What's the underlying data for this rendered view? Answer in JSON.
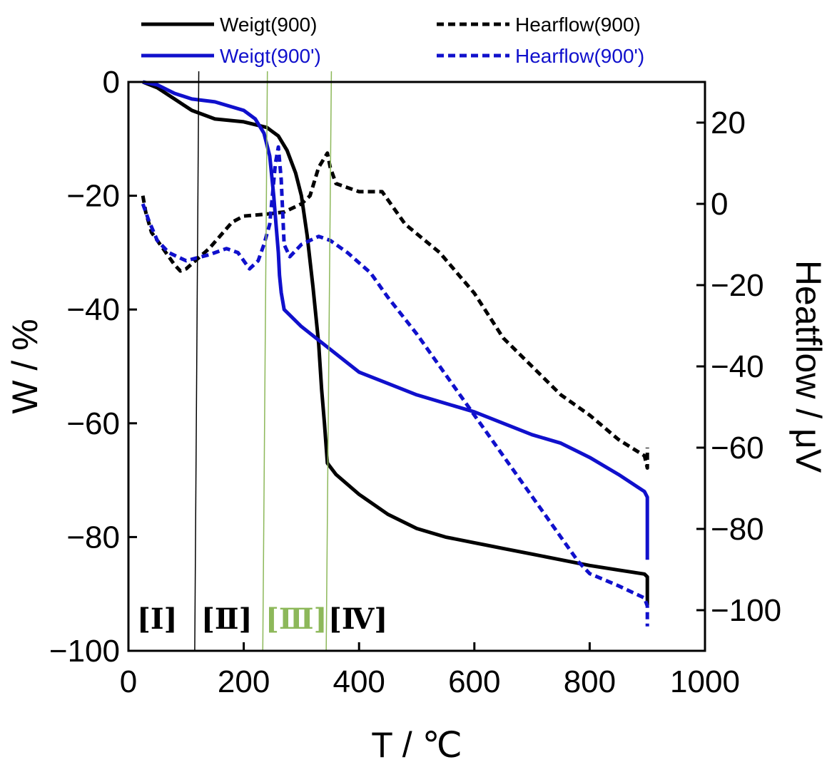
{
  "chart_data": {
    "type": "line",
    "xlabel": "T  /  ℃",
    "ylabel_left": "W  /  %",
    "ylabel_right": "Heatflow  /  μV",
    "xlim": [
      0,
      1000
    ],
    "ylim_left": [
      -100,
      0
    ],
    "ylim_right": [
      -110,
      30
    ],
    "x_ticks": [
      0,
      200,
      400,
      600,
      800,
      1000
    ],
    "y_left_ticks": [
      0,
      -20,
      -40,
      -60,
      -80,
      -100
    ],
    "y_right_ticks": [
      20,
      0,
      -20,
      -40,
      -60,
      -80,
      -100
    ],
    "grid": false,
    "legend_placement": "top",
    "legend": [
      {
        "label": "Weigt(900)",
        "color": "#000000",
        "dash": "solid"
      },
      {
        "label": "Hearflow(900)",
        "color": "#000000",
        "dash": "dashed"
      },
      {
        "label": "Weigt(900')",
        "color": "#1010cc",
        "dash": "solid"
      },
      {
        "label": "Hearflow(900')",
        "color": "#1010cc",
        "dash": "dashed"
      }
    ],
    "regions": [
      {
        "label": "[Ⅰ]",
        "color": "#000000"
      },
      {
        "label": "[Ⅱ]",
        "color": "#000000"
      },
      {
        "label": "[Ⅲ]",
        "color": "#8db85a"
      },
      {
        "label": "[Ⅳ]",
        "color": "#000000"
      }
    ],
    "boundary_lines": [
      {
        "x": [
          115,
          122
        ],
        "color": "#000000"
      },
      {
        "x": [
          233,
          241
        ],
        "color": "#8db85a"
      },
      {
        "x": [
          343,
          352
        ],
        "color": "#8db85a"
      }
    ],
    "series": [
      {
        "name": "Weigt(900)",
        "axis": "left",
        "color": "#000000",
        "dash": "solid",
        "x": [
          25,
          50,
          80,
          110,
          150,
          200,
          240,
          260,
          275,
          290,
          300,
          310,
          320,
          330,
          335,
          340,
          345,
          360,
          400,
          450,
          500,
          550,
          600,
          650,
          700,
          750,
          800,
          850,
          895,
          900,
          900
        ],
        "y": [
          0,
          -1,
          -3,
          -5,
          -6.5,
          -7,
          -8,
          -9.5,
          -12,
          -16,
          -20,
          -27,
          -36,
          -46,
          -54,
          -60,
          -67,
          -69,
          -72.5,
          -76,
          -78.5,
          -80,
          -81,
          -82,
          -83,
          -84,
          -85,
          -85.8,
          -86.5,
          -87,
          -92
        ]
      },
      {
        "name": "Hearflow(900)",
        "axis": "right",
        "color": "#000000",
        "dash": "dashed",
        "x": [
          25,
          30,
          40,
          60,
          80,
          90,
          100,
          140,
          180,
          200,
          240,
          270,
          300,
          315,
          330,
          345,
          350,
          360,
          400,
          440,
          480,
          540,
          600,
          650,
          700,
          750,
          800,
          850,
          895,
          900,
          900
        ],
        "y": [
          2,
          -2,
          -7,
          -11,
          -15,
          -16.5,
          -16,
          -11,
          -4.5,
          -3,
          -2.5,
          -2,
          0,
          2,
          9,
          12.5,
          9,
          5,
          3,
          3,
          -5,
          -12,
          -22,
          -33,
          -40,
          -47,
          -52,
          -58,
          -62,
          -65,
          -60
        ]
      },
      {
        "name": "Weigt(900')",
        "axis": "left",
        "color": "#1010cc",
        "dash": "solid",
        "x": [
          25,
          50,
          80,
          110,
          150,
          200,
          220,
          235,
          245,
          252,
          256,
          260,
          262,
          265,
          270,
          300,
          350,
          400,
          450,
          500,
          550,
          600,
          650,
          700,
          750,
          800,
          850,
          895,
          900,
          900
        ],
        "y": [
          0,
          -0.5,
          -2,
          -3,
          -3.5,
          -5,
          -6.5,
          -9,
          -13,
          -20,
          -25,
          -30,
          -34,
          -37,
          -40,
          -43,
          -47,
          -51,
          -53,
          -55,
          -56.5,
          -58,
          -60,
          -62,
          -63.5,
          -66,
          -69,
          -72,
          -73,
          -84
        ]
      },
      {
        "name": "Hearflow(900')",
        "axis": "right",
        "color": "#1010cc",
        "dash": "dashed",
        "x": [
          25,
          35,
          50,
          70,
          100,
          140,
          170,
          190,
          210,
          225,
          235,
          245,
          255,
          260,
          265,
          270,
          280,
          300,
          330,
          350,
          380,
          420,
          450,
          500,
          550,
          600,
          650,
          700,
          750,
          780,
          800,
          850,
          895,
          900,
          900
        ],
        "y": [
          0,
          -4,
          -9,
          -12,
          -14,
          -12.5,
          -11,
          -12,
          -16,
          -14,
          -10,
          -5,
          10,
          14,
          6,
          -10,
          -13,
          -10,
          -8,
          -9,
          -12,
          -17,
          -23,
          -32,
          -42,
          -52,
          -62,
          -72,
          -82,
          -88,
          -91,
          -94,
          -97,
          -99,
          -104
        ]
      }
    ]
  }
}
